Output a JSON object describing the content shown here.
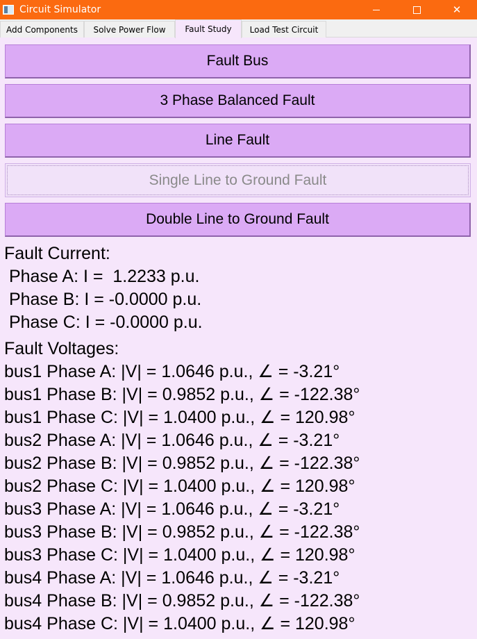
{
  "window": {
    "title": "Circuit Simulator",
    "minimize": "—",
    "maximize": "☐",
    "close": "✕"
  },
  "tabs": [
    {
      "label": "Add Components",
      "active": false
    },
    {
      "label": "Solve Power Flow",
      "active": false
    },
    {
      "label": "Fault Study",
      "active": true
    },
    {
      "label": "Load Test Circuit",
      "active": false
    }
  ],
  "buttons": [
    {
      "label": "Fault Bus",
      "enabled": true
    },
    {
      "label": "3 Phase Balanced Fault",
      "enabled": true
    },
    {
      "label": "Line Fault",
      "enabled": true
    },
    {
      "label": "Single Line to Ground Fault",
      "enabled": false
    },
    {
      "label": "Double Line to Ground Fault",
      "enabled": true
    }
  ],
  "fault_current": {
    "heading": "Fault Current:",
    "lines": [
      " Phase A: I =  1.2233 p.u.",
      " Phase B: I = -0.0000 p.u.",
      " Phase C: I = -0.0000 p.u."
    ]
  },
  "fault_voltages": {
    "heading": "Fault Voltages:",
    "lines": [
      "bus1 Phase A: |V| = 1.0646 p.u., ∠ = -3.21°",
      "bus1 Phase B: |V| = 0.9852 p.u., ∠ = -122.38°",
      "bus1 Phase C: |V| = 1.0400 p.u., ∠ = 120.98°",
      "bus2 Phase A: |V| = 1.0646 p.u., ∠ = -3.21°",
      "bus2 Phase B: |V| = 0.9852 p.u., ∠ = -122.38°",
      "bus2 Phase C: |V| = 1.0400 p.u., ∠ = 120.98°",
      "bus3 Phase A: |V| = 1.0646 p.u., ∠ = -3.21°",
      "bus3 Phase B: |V| = 0.9852 p.u., ∠ = -122.38°",
      "bus3 Phase C: |V| = 1.0400 p.u., ∠ = 120.98°",
      "bus4 Phase A: |V| = 1.0646 p.u., ∠ = -3.21°",
      "bus4 Phase B: |V| = 0.9852 p.u., ∠ = -122.38°",
      "bus4 Phase C: |V| = 1.0400 p.u., ∠ = 120.98°"
    ]
  },
  "colors": {
    "titlebar": "#fb6a10",
    "button": "#dbaaf5",
    "background": "#f6e6fb"
  }
}
